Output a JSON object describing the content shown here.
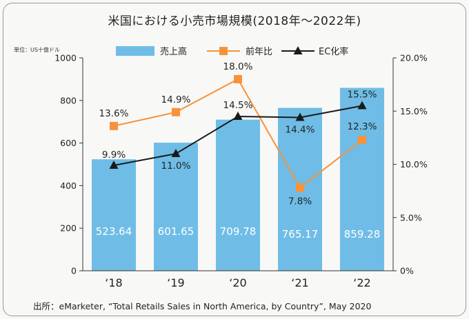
{
  "title": "米国における小売市場規模(2018年〜2022年)",
  "unit_label": "単位：US十億ドル",
  "source": "出所：eMarketer, “Total Retails Sales in North America, by Country”, May 2020",
  "colors": {
    "bar": "#6fbde6",
    "yoy": "#f7923a",
    "ec": "#1a1a1a"
  },
  "chart_data": {
    "type": "bar+line",
    "categories": [
      "‘18",
      "‘19",
      "‘20",
      "‘21",
      "‘22"
    ],
    "bar_series": {
      "name": "売上高",
      "values": [
        523.64,
        601.65,
        709.78,
        765.17,
        859.28
      ],
      "labels": [
        "523.64",
        "601.65",
        "709.78",
        "765.17",
        "859.28"
      ]
    },
    "line_series": [
      {
        "name": "前年比",
        "values": [
          13.6,
          14.9,
          18.0,
          7.8,
          12.3
        ],
        "labels": [
          "13.6%",
          "14.9%",
          "18.0%",
          "7.8%",
          "12.3%"
        ],
        "marker": "square"
      },
      {
        "name": "EC化率",
        "values": [
          9.9,
          11.0,
          14.5,
          14.4,
          15.5
        ],
        "labels": [
          "9.9%",
          "11.0%",
          "14.5%",
          "14.4%",
          "15.5%"
        ],
        "marker": "triangle"
      }
    ],
    "y_left": {
      "min": 0,
      "max": 1000,
      "ticks": [
        "0",
        "200",
        "400",
        "600",
        "800",
        "1000"
      ]
    },
    "y_right": {
      "min": 0,
      "max": 20,
      "ticks": [
        "0%",
        "5.0%",
        "10.0%",
        "15.0%",
        "20.0%"
      ]
    },
    "grid": false,
    "legend_position": "top"
  }
}
